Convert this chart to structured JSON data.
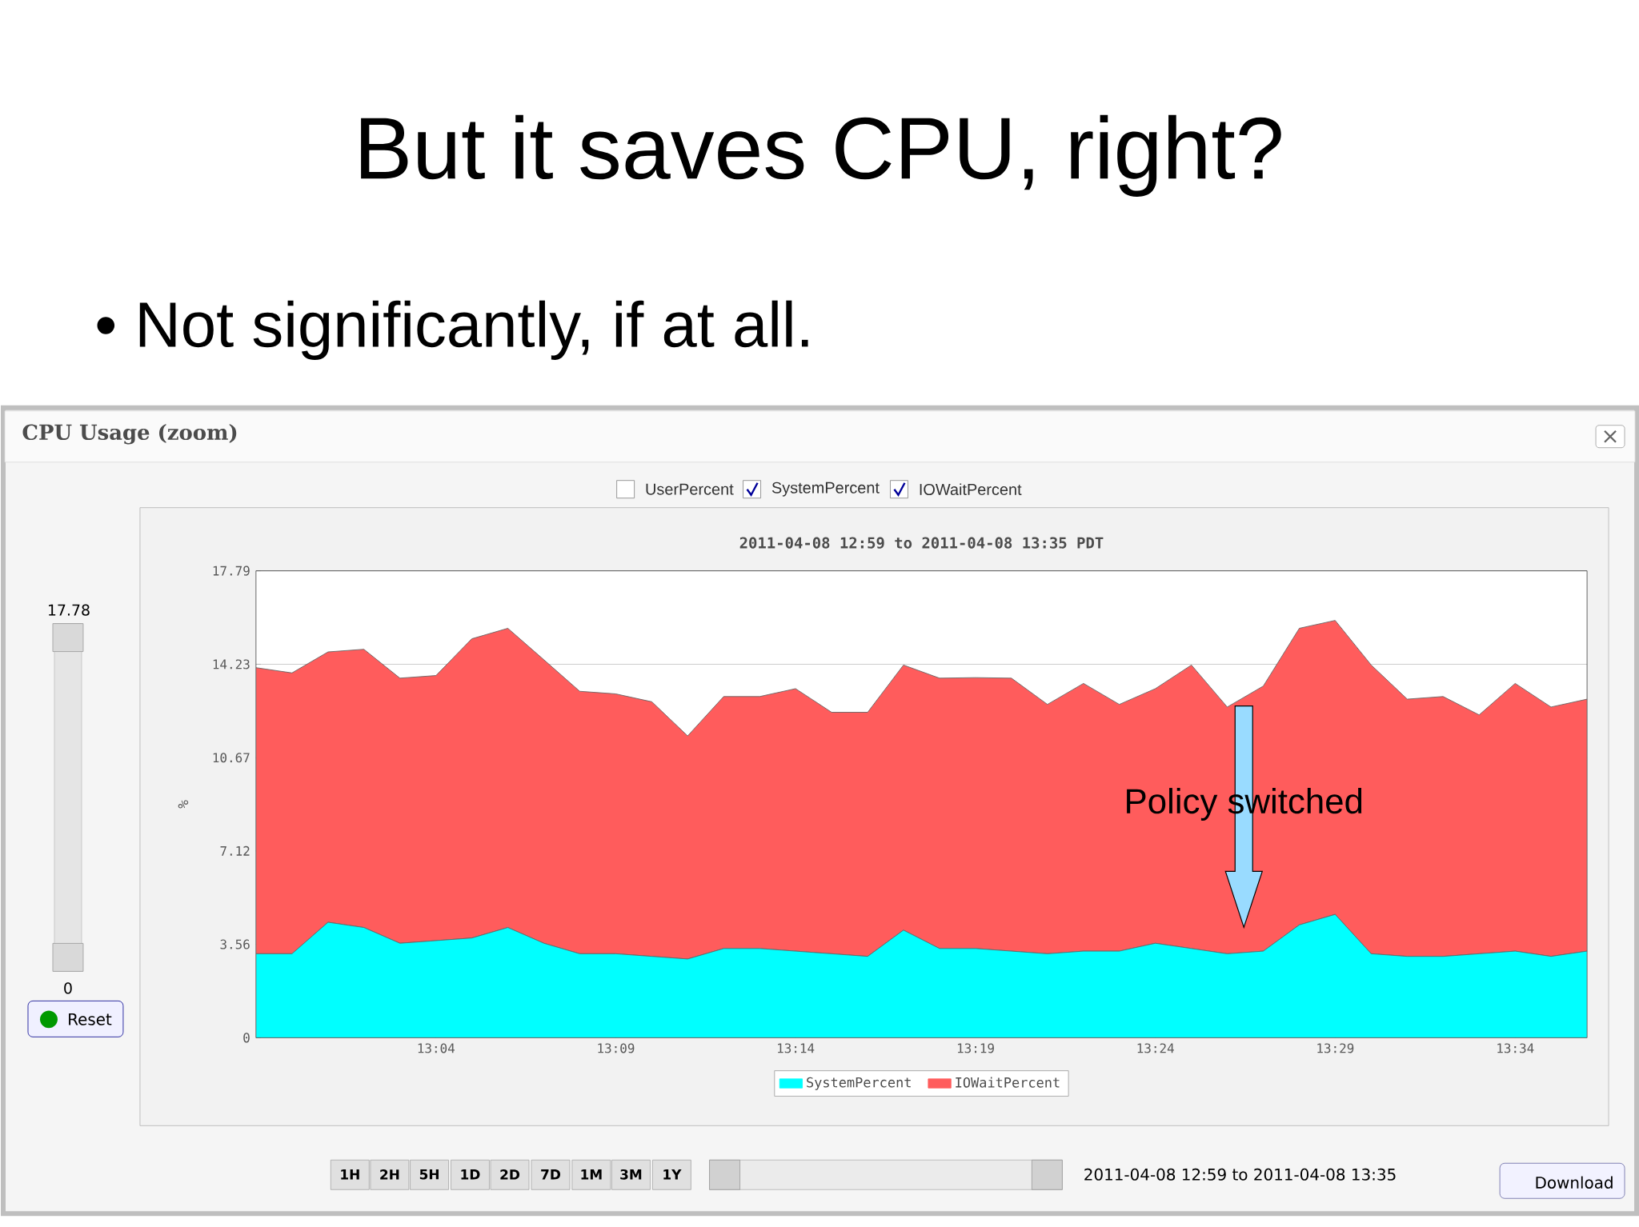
{
  "chart_data": {
    "type": "area",
    "title": "But it saves CPU, right?",
    "subtitle": "• Not significantly, if at all.",
    "ylabel": "%",
    "stacked": true,
    "grid": "y",
    "legend": "bottom",
    "xlim": [
      12.9833,
      13.6
    ],
    "ylim": [
      0,
      17.79
    ],
    "xticks": [
      {
        "value": 13.0667,
        "label": "13:04"
      },
      {
        "value": 13.15,
        "label": "13:09"
      },
      {
        "value": 13.2333,
        "label": "13:14"
      },
      {
        "value": 13.3167,
        "label": "13:19"
      },
      {
        "value": 13.4,
        "label": "13:24"
      },
      {
        "value": 13.4833,
        "label": "13:29"
      },
      {
        "value": 13.5667,
        "label": "13:34"
      }
    ],
    "yticks": [
      0,
      3.56,
      7.12,
      10.67,
      14.23,
      17.79
    ],
    "x": [
      12.9833,
      13.0,
      13.0167,
      13.0333,
      13.05,
      13.0667,
      13.0833,
      13.1,
      13.1167,
      13.1333,
      13.15,
      13.1667,
      13.1833,
      13.2,
      13.2167,
      13.2333,
      13.25,
      13.2667,
      13.2833,
      13.3,
      13.3167,
      13.3333,
      13.35,
      13.3667,
      13.3833,
      13.4,
      13.4167,
      13.4333,
      13.45,
      13.4667,
      13.4833,
      13.5,
      13.5167,
      13.5333,
      13.55,
      13.5667,
      13.5833,
      13.6
    ],
    "series": [
      {
        "name": "SystemPercent",
        "color": "#00ffff",
        "values": [
          3.2,
          3.2,
          4.4,
          4.2,
          3.6,
          3.7,
          3.8,
          4.2,
          3.6,
          3.2,
          3.2,
          3.1,
          3.0,
          3.4,
          3.4,
          3.3,
          3.2,
          3.1,
          4.1,
          3.4,
          3.4,
          3.3,
          3.2,
          3.3,
          3.3,
          3.6,
          3.4,
          3.2,
          3.3,
          4.3,
          4.7,
          3.2,
          3.1,
          3.1,
          3.2,
          3.3,
          3.1,
          3.3
        ]
      },
      {
        "name": "IOWaitPercent",
        "color": "#ff5c5c",
        "values": [
          10.9,
          10.7,
          10.3,
          10.6,
          10.1,
          10.1,
          11.4,
          11.4,
          10.8,
          10.0,
          9.9,
          9.7,
          8.5,
          9.6,
          9.6,
          10.0,
          9.2,
          9.3,
          10.1,
          10.3,
          10.32,
          10.4,
          9.5,
          10.2,
          9.4,
          9.7,
          10.8,
          9.4,
          10.1,
          11.3,
          11.2,
          11.0,
          9.8,
          9.9,
          9.1,
          10.2,
          9.5,
          9.6
        ]
      }
    ],
    "annotations": [
      "CPU Usage (zoom)",
      "2011-04-08 12:59 to 2011-04-08 13:35 PDT",
      "UserPercent",
      "SystemPercent",
      "IOWaitPercent",
      "17.78",
      "0",
      "Reset",
      "1H",
      "2H",
      "5H",
      "1D",
      "2D",
      "7D",
      "1M",
      "3M",
      "1Y",
      "2011-04-08 12:59  to  2011-04-08 13:35",
      "Download",
      "Policy switched"
    ]
  }
}
